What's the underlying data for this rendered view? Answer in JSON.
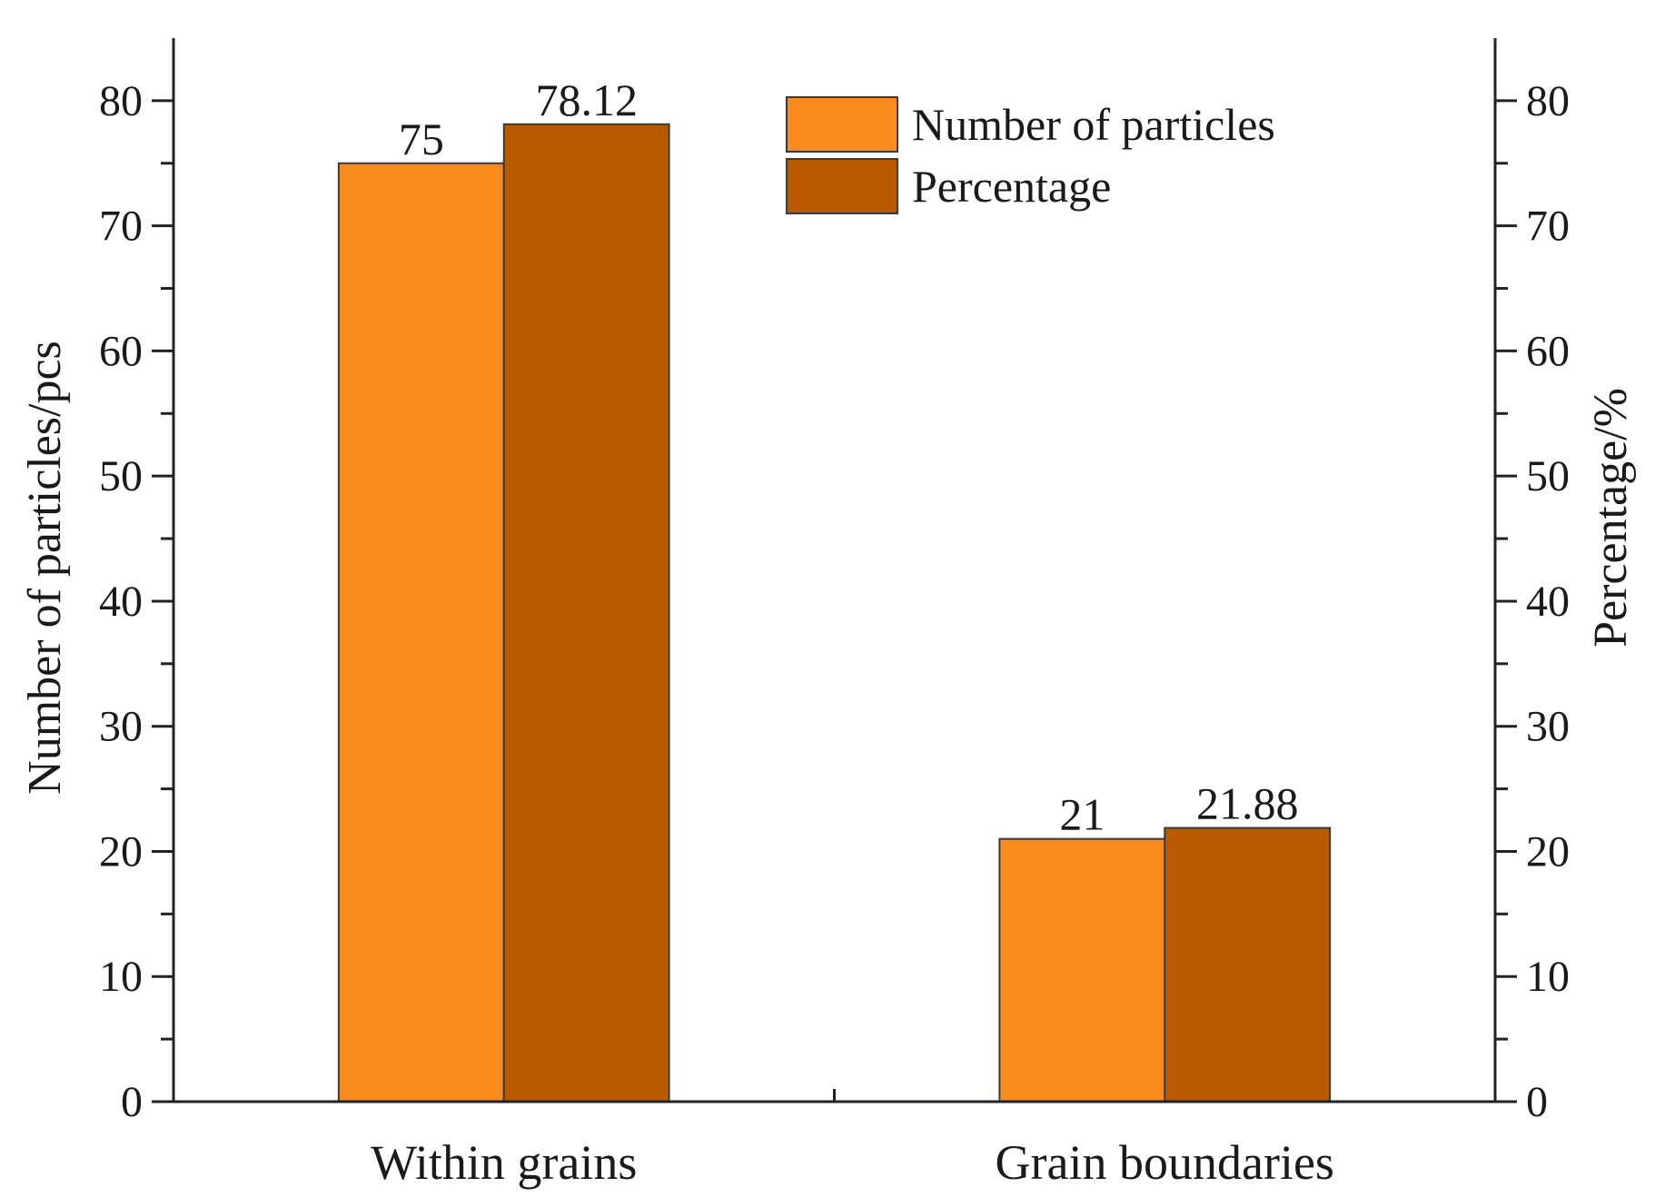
{
  "chart_data": {
    "type": "bar",
    "categories": [
      "Within grains",
      "Grain boundaries"
    ],
    "series": [
      {
        "name": "Number of particles",
        "values": [
          75,
          21
        ],
        "labels": [
          "75",
          "21"
        ],
        "color": "#FB8A1F",
        "axis": "left"
      },
      {
        "name": "Percentage",
        "values": [
          78.12,
          21.88
        ],
        "labels": [
          "78.12",
          "21.88"
        ],
        "color": "#BA5A00",
        "axis": "right"
      }
    ],
    "title": "",
    "xlabel": "",
    "ylabel": "Number of particles/pcs",
    "y2label": "Percentage/%",
    "ylim": [
      0,
      85
    ],
    "y2lim": [
      0,
      85
    ],
    "yticks": [
      0,
      10,
      20,
      30,
      40,
      50,
      60,
      70,
      80
    ],
    "y2ticks": [
      0,
      10,
      20,
      30,
      40,
      50,
      60,
      70,
      80
    ],
    "minor_tick_step": 5,
    "grid": false,
    "legend_position": "top-right",
    "colors": {
      "axis": "#222222",
      "edge": "#3a3a3a"
    }
  }
}
